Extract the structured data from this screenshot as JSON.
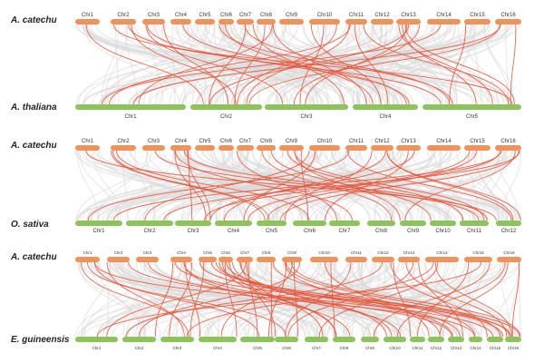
{
  "colors": {
    "top_chr": "#f0935a",
    "bottom_chr": "#8cc35a",
    "background_link": "#d9d9d9",
    "highlight_link": "#e8553a"
  },
  "panels": [
    {
      "id": "thaliana",
      "top_species": "A. catechu",
      "bottom_species": "A. thaliana",
      "top_chrs": [
        "Chr1",
        "Chr2",
        "Chr3",
        "Chr4",
        "Chr5",
        "Chr6",
        "Chr7",
        "Chr8",
        "Chr9",
        "Chr10",
        "Chr11",
        "Chr12",
        "Chr13",
        "Chr14",
        "Chr15",
        "Chr16"
      ],
      "bottom_chrs": [
        "Chr1",
        "Chr2",
        "Chr3",
        "Chr4",
        "Chr5"
      ]
    },
    {
      "id": "sativa",
      "top_species": "A. catechu",
      "bottom_species": "O. sativa",
      "top_chrs": [
        "Chr1",
        "Chr2",
        "Chr3",
        "Chr4",
        "Chr5",
        "Chr6",
        "Chr7",
        "Chr8",
        "Chr9",
        "Chr10",
        "Chr11",
        "Chr12",
        "Chr13",
        "Chr14",
        "Chr15",
        "Chr16"
      ],
      "bottom_chrs": [
        "Chr1",
        "Chr2",
        "Chr3",
        "Chr4",
        "Chr5",
        "Chr6",
        "Chr7",
        "Chr8",
        "Chr9",
        "Chr10",
        "Chr11",
        "Chr12"
      ]
    },
    {
      "id": "guineensis",
      "top_species": "A. catechu",
      "bottom_species": "E. guineensis",
      "top_chrs": [
        "Chr1",
        "Chr2",
        "Chr3",
        "Chr4",
        "Chr5",
        "Chr6",
        "Chr7",
        "Chr8",
        "Chr9",
        "Chr10",
        "Chr11",
        "Chr12",
        "Chr13",
        "Chr14",
        "Chr15",
        "Chr16"
      ],
      "bottom_chrs": [
        "Chr1",
        "Chr2",
        "Chr3",
        "Chr4",
        "Chr5",
        "Chr6",
        "Chr7",
        "Chr8",
        "Chr9",
        "Chr10",
        "Chr11",
        "Chr12",
        "Chr13",
        "Chr14",
        "Chr15",
        "Chr16"
      ]
    }
  ]
}
